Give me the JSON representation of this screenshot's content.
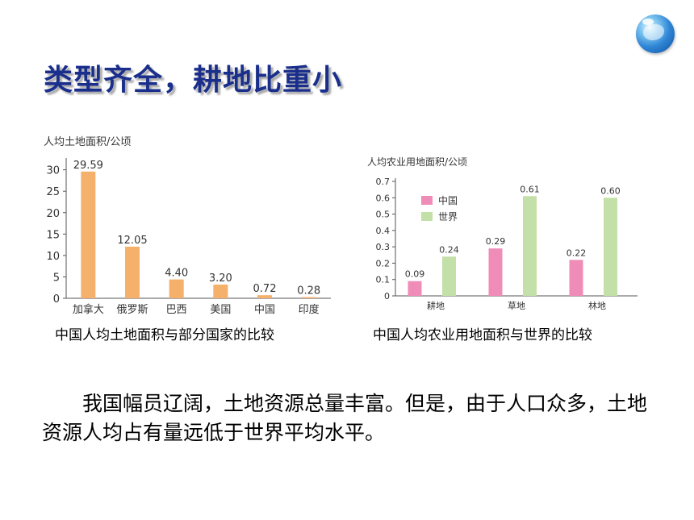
{
  "title": "类型齐全，耕地比重小",
  "icon": "globe-icon",
  "chart_data": [
    {
      "type": "bar",
      "ylabel": "人均土地面积/公顷",
      "categories": [
        "加拿大",
        "俄罗斯",
        "巴西",
        "美国",
        "中国",
        "印度"
      ],
      "values": [
        29.59,
        12.05,
        4.4,
        3.2,
        0.72,
        0.28
      ],
      "value_labels": [
        "29.59",
        "12.05",
        "4.40",
        "3.20",
        "0.72",
        "0.28"
      ],
      "yticks": [
        "0",
        "5",
        "10",
        "15",
        "20",
        "25",
        "30"
      ],
      "ylim": [
        0,
        32
      ],
      "color": "#f5b06c",
      "caption": "中国人均土地面积与部分国家的比较"
    },
    {
      "type": "bar",
      "ylabel": "人均农业用地面积/公顷",
      "categories": [
        "耕地",
        "草地",
        "林地"
      ],
      "series": [
        {
          "name": "中国",
          "values": [
            0.09,
            0.29,
            0.22
          ],
          "value_labels": [
            "0.09",
            "0.29",
            "0.22"
          ],
          "color": "#f08cb8"
        },
        {
          "name": "世界",
          "values": [
            0.24,
            0.61,
            0.6
          ],
          "value_labels": [
            "0.24",
            "0.61",
            "0.60"
          ],
          "color": "#c3e0a8"
        }
      ],
      "yticks": [
        "0",
        "0.1",
        "0.2",
        "0.3",
        "0.4",
        "0.5",
        "0.6",
        "0.7"
      ],
      "ylim": [
        0,
        0.7
      ],
      "legend": "top-left",
      "caption": "中国人均农业用地面积与世界的比较"
    }
  ],
  "paragraph": "我国幅员辽阔，土地资源总量丰富。但是，由于人口众多，土地资源人均占有量远低于世界平均水平。"
}
